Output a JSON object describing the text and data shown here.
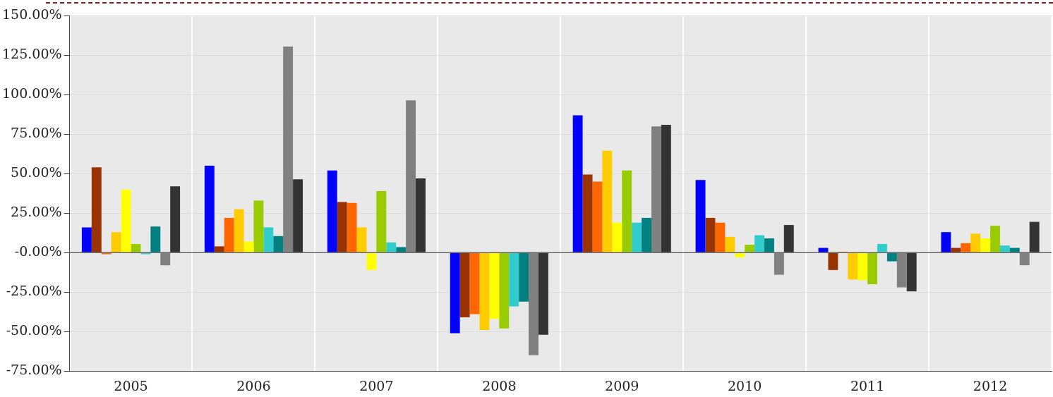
{
  "chart_data": {
    "type": "bar",
    "categories": [
      "2005",
      "2006",
      "2007",
      "2008",
      "2009",
      "2010",
      "2011",
      "2012"
    ],
    "series": [
      {
        "color": "#0000ff",
        "values": [
          16,
          55,
          52,
          -51,
          87,
          46,
          3,
          13
        ]
      },
      {
        "color": "#993300",
        "values": [
          54,
          4,
          32,
          -41,
          49.5,
          22,
          -11,
          3
        ]
      },
      {
        "color": "#ff6600",
        "values": [
          -1,
          22,
          31.5,
          -39,
          45,
          19,
          0.5,
          6
        ]
      },
      {
        "color": "#ffcc00",
        "values": [
          13,
          27.5,
          16,
          -49,
          64.5,
          10,
          -17,
          12
        ]
      },
      {
        "color": "#ffff00",
        "values": [
          40,
          7,
          -11,
          -42,
          19,
          -3,
          -17.5,
          9
        ]
      },
      {
        "color": "#99cc00",
        "values": [
          5.5,
          33,
          39,
          -48,
          52,
          5,
          -20,
          17
        ]
      },
      {
        "color": "#33cccc",
        "values": [
          -1,
          16,
          6.5,
          -34,
          19,
          11,
          5.5,
          4.5
        ]
      },
      {
        "color": "#008080",
        "values": [
          16.5,
          10.5,
          3.5,
          -31,
          22,
          9,
          -5.5,
          3
        ]
      },
      {
        "color": "#808080",
        "values": [
          -8,
          130.5,
          96.5,
          -65,
          80,
          -14,
          -22,
          -8
        ]
      },
      {
        "color": "#333333",
        "values": [
          42,
          46.5,
          47,
          -52,
          81,
          17.5,
          -24.5,
          19.5
        ]
      }
    ],
    "ylim": [
      -75,
      150
    ],
    "yticks": [
      {
        "value": -75,
        "label": "-75.00%"
      },
      {
        "value": -50,
        "label": "-50.00%"
      },
      {
        "value": -25,
        "label": "-25.00%"
      },
      {
        "value": 0,
        "label": "-0.00%"
      },
      {
        "value": 25,
        "label": "25.00%"
      },
      {
        "value": 50,
        "label": "50.00%"
      },
      {
        "value": 75,
        "label": "75.00%"
      },
      {
        "value": 100,
        "label": "100.00%"
      },
      {
        "value": 125,
        "label": "125.00%"
      },
      {
        "value": 150,
        "label": "150.00%"
      }
    ],
    "grid": true,
    "legend": false
  }
}
